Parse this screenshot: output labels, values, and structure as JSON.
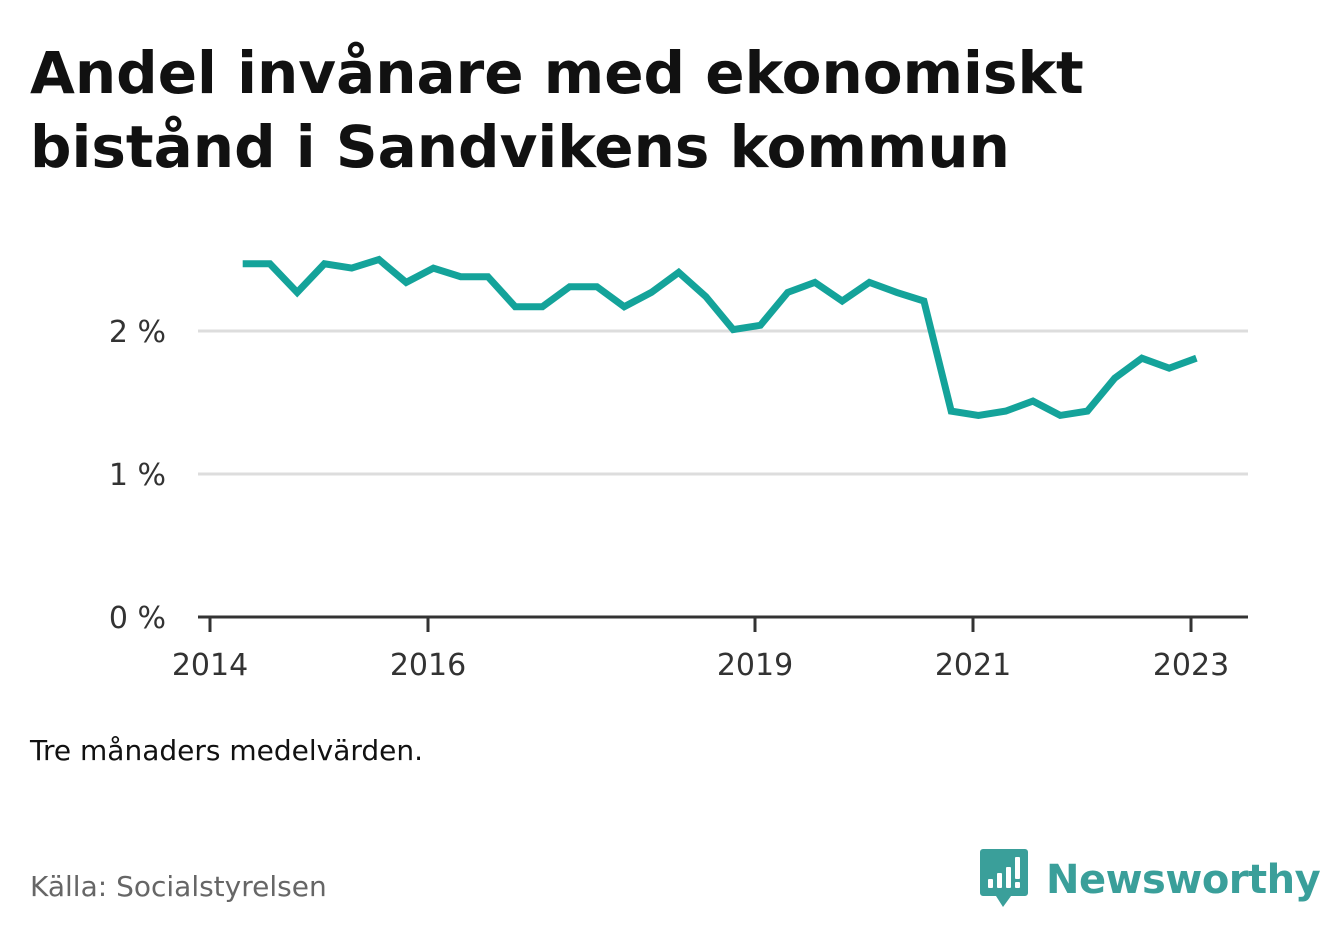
{
  "title": "Andel invånare med ekonomiskt bistånd i Sandvikens kommun",
  "note": "Tre månaders medelvärden.",
  "source": "Källa: Socialstyrelsen",
  "brand": {
    "name": "Newsworthy",
    "icon": "newsworthy-logo-icon",
    "color": "#3a9f9a"
  },
  "colors": {
    "line": "#14a39a",
    "grid": "#dddddd",
    "axis": "#333333"
  },
  "chart_data": {
    "type": "line",
    "title": "Andel invånare med ekonomiskt bistånd i Sandvikens kommun",
    "xlabel": "",
    "ylabel": "",
    "ylim": [
      0,
      3
    ],
    "grid": true,
    "y_ticks": [
      {
        "value": 0,
        "label": "0 %"
      },
      {
        "value": 1,
        "label": "1 %"
      },
      {
        "value": 2,
        "label": "2 %"
      }
    ],
    "x_ticks": [
      {
        "value": 2014,
        "label": "2014"
      },
      {
        "value": 2016,
        "label": "2016"
      },
      {
        "value": 2019,
        "label": "2019"
      },
      {
        "value": 2021,
        "label": "2021"
      },
      {
        "value": 2023,
        "label": "2023"
      }
    ],
    "x": [
      2014.3,
      2014.55,
      2014.8,
      2015.05,
      2015.3,
      2015.55,
      2015.8,
      2016.05,
      2016.3,
      2016.55,
      2016.8,
      2017.05,
      2017.3,
      2017.55,
      2017.8,
      2018.05,
      2018.3,
      2018.55,
      2018.8,
      2019.05,
      2019.3,
      2019.55,
      2019.8,
      2020.05,
      2020.3,
      2020.55,
      2020.8,
      2021.05,
      2021.3,
      2021.55,
      2021.8,
      2022.05,
      2022.3,
      2022.55,
      2022.8,
      2023.05
    ],
    "series": [
      {
        "values": [
          2.47,
          2.47,
          2.27,
          2.47,
          2.44,
          2.5,
          2.34,
          2.44,
          2.38,
          2.38,
          2.17,
          2.17,
          2.31,
          2.31,
          2.17,
          2.27,
          2.41,
          2.24,
          2.01,
          2.04,
          2.27,
          2.34,
          2.21,
          2.34,
          2.27,
          2.21,
          1.44,
          1.41,
          1.44,
          1.51,
          1.41,
          1.44,
          1.67,
          1.81,
          1.74,
          1.81
        ]
      }
    ]
  }
}
